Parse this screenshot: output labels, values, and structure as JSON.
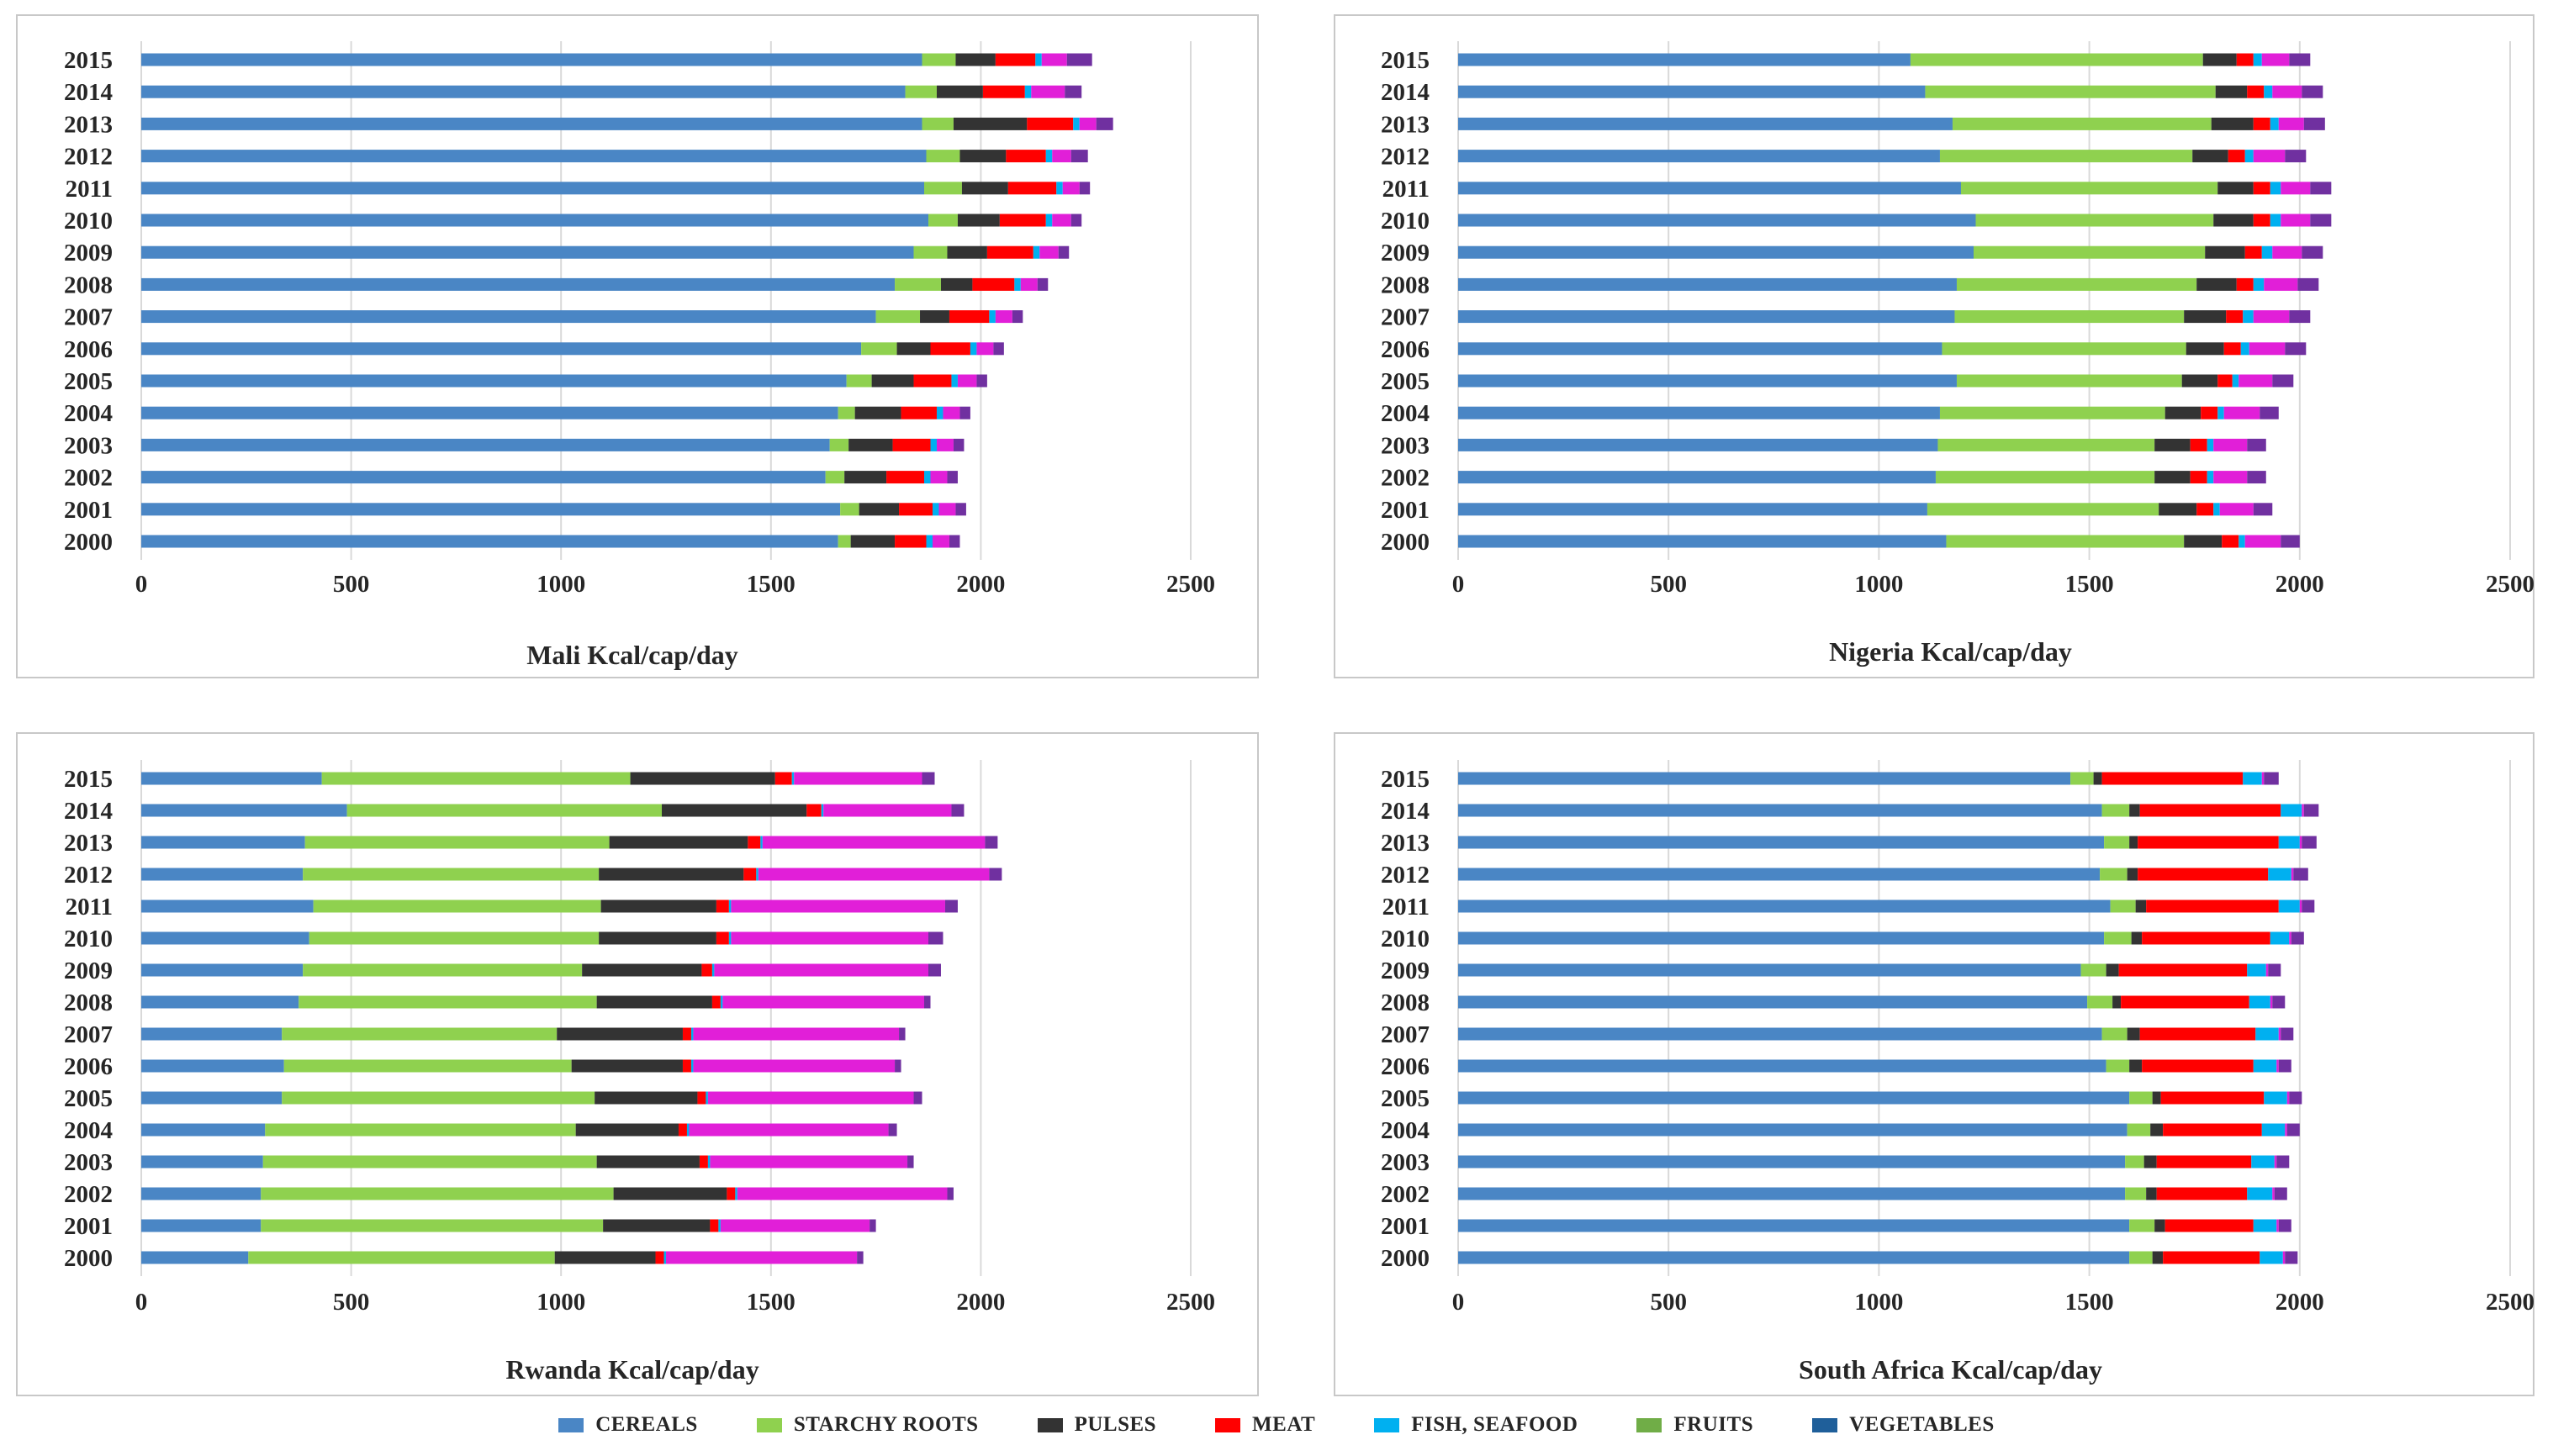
{
  "chart_data": [
    {
      "type": "bar",
      "orientation": "horizontal",
      "stacked": true,
      "title": "Mali    Kcal/cap/day",
      "categories": [
        "2000",
        "2001",
        "2002",
        "2003",
        "2004",
        "2005",
        "2006",
        "2007",
        "2008",
        "2009",
        "2010",
        "2011",
        "2012",
        "2013",
        "2014",
        "2015"
      ],
      "xlim": [
        0,
        2500
      ],
      "xticks": [
        "0",
        "500",
        "1000",
        "1500",
        "2000",
        "2500"
      ],
      "series": [
        {
          "name": "CEREALS",
          "values": [
            1660,
            1665,
            1630,
            1640,
            1660,
            1680,
            1715,
            1750,
            1795,
            1840,
            1875,
            1865,
            1870,
            1860,
            1820,
            1860
          ]
        },
        {
          "name": "STARCHY ROOTS",
          "values": [
            30,
            45,
            45,
            45,
            40,
            60,
            85,
            105,
            110,
            80,
            70,
            90,
            80,
            75,
            75,
            80
          ]
        },
        {
          "name": "PULSES",
          "values": [
            105,
            95,
            100,
            105,
            110,
            100,
            80,
            70,
            75,
            95,
            100,
            110,
            110,
            175,
            110,
            95
          ]
        },
        {
          "name": "MEAT",
          "values": [
            75,
            80,
            90,
            90,
            85,
            90,
            95,
            95,
            100,
            110,
            110,
            115,
            95,
            110,
            100,
            95
          ]
        },
        {
          "name": "FISH, SEAFOOD",
          "values": [
            15,
            15,
            15,
            15,
            15,
            15,
            15,
            15,
            15,
            15,
            15,
            15,
            15,
            15,
            15,
            15
          ]
        },
        {
          "name": "FRUITS",
          "values": [
            40,
            40,
            40,
            40,
            40,
            45,
            40,
            40,
            40,
            45,
            45,
            40,
            45,
            40,
            80,
            60
          ]
        },
        {
          "name": "VEGETABLES",
          "values": [
            25,
            25,
            25,
            25,
            25,
            25,
            25,
            25,
            25,
            25,
            25,
            25,
            40,
            40,
            40,
            60
          ]
        }
      ]
    },
    {
      "type": "bar",
      "orientation": "horizontal",
      "stacked": true,
      "title": "Nigeria    Kcal/cap/day",
      "categories": [
        "2000",
        "2001",
        "2002",
        "2003",
        "2004",
        "2005",
        "2006",
        "2007",
        "2008",
        "2009",
        "2010",
        "2011",
        "2012",
        "2013",
        "2014",
        "2015"
      ],
      "xlim": [
        0,
        2500
      ],
      "xticks": [
        "0",
        "500",
        "1000",
        "1500",
        "2000",
        "2500"
      ],
      "series": [
        {
          "name": "CEREALS",
          "values": [
            1160,
            1115,
            1135,
            1140,
            1145,
            1185,
            1150,
            1180,
            1185,
            1225,
            1230,
            1195,
            1145,
            1175,
            1110,
            1075
          ]
        },
        {
          "name": "STARCHY ROOTS",
          "values": [
            565,
            550,
            520,
            515,
            535,
            535,
            580,
            545,
            570,
            550,
            565,
            610,
            600,
            615,
            690,
            695
          ]
        },
        {
          "name": "PULSES",
          "values": [
            90,
            90,
            85,
            85,
            85,
            85,
            90,
            100,
            95,
            95,
            95,
            85,
            85,
            100,
            75,
            80
          ]
        },
        {
          "name": "MEAT",
          "values": [
            40,
            40,
            40,
            40,
            40,
            35,
            40,
            40,
            40,
            40,
            40,
            40,
            40,
            40,
            40,
            40
          ]
        },
        {
          "name": "FISH, SEAFOOD",
          "values": [
            15,
            15,
            15,
            15,
            15,
            15,
            20,
            25,
            25,
            25,
            25,
            25,
            20,
            20,
            20,
            20
          ]
        },
        {
          "name": "FRUITS",
          "values": [
            85,
            80,
            80,
            80,
            85,
            80,
            85,
            85,
            80,
            70,
            70,
            70,
            75,
            60,
            70,
            65
          ]
        },
        {
          "name": "VEGETABLES",
          "values": [
            45,
            45,
            45,
            45,
            45,
            50,
            50,
            50,
            50,
            50,
            50,
            50,
            50,
            50,
            50,
            50
          ]
        }
      ]
    },
    {
      "type": "bar",
      "orientation": "horizontal",
      "stacked": true,
      "title": "Rwanda    Kcal/cap/day",
      "categories": [
        "2000",
        "2001",
        "2002",
        "2003",
        "2004",
        "2005",
        "2006",
        "2007",
        "2008",
        "2009",
        "2010",
        "2011",
        "2012",
        "2013",
        "2014",
        "2015"
      ],
      "xlim": [
        0,
        2500
      ],
      "xticks": [
        "0",
        "500",
        "1000",
        "1500",
        "2000",
        "2500"
      ],
      "series": [
        {
          "name": "CEREALS",
          "values": [
            255,
            285,
            285,
            290,
            295,
            335,
            340,
            335,
            375,
            385,
            400,
            410,
            385,
            390,
            490,
            430
          ]
        },
        {
          "name": "STARCHY ROOTS",
          "values": [
            730,
            815,
            840,
            795,
            740,
            745,
            685,
            655,
            710,
            665,
            690,
            685,
            705,
            725,
            750,
            735
          ]
        },
        {
          "name": "PULSES",
          "values": [
            240,
            255,
            270,
            245,
            245,
            245,
            265,
            300,
            275,
            285,
            280,
            275,
            345,
            330,
            345,
            345
          ]
        },
        {
          "name": "MEAT",
          "values": [
            20,
            20,
            20,
            20,
            20,
            20,
            20,
            20,
            20,
            25,
            30,
            30,
            30,
            30,
            35,
            40
          ]
        },
        {
          "name": "FISH, SEAFOOD",
          "values": [
            5,
            5,
            5,
            5,
            5,
            5,
            5,
            5,
            5,
            5,
            5,
            5,
            5,
            5,
            5,
            5
          ]
        },
        {
          "name": "FRUITS",
          "values": [
            455,
            355,
            500,
            470,
            475,
            490,
            480,
            490,
            480,
            510,
            470,
            510,
            550,
            530,
            305,
            305
          ]
        },
        {
          "name": "VEGETABLES",
          "values": [
            15,
            15,
            15,
            15,
            20,
            20,
            15,
            15,
            15,
            30,
            35,
            30,
            30,
            30,
            30,
            30
          ]
        }
      ]
    },
    {
      "type": "bar",
      "orientation": "horizontal",
      "stacked": true,
      "title": "South Africa    Kcal/cap/day",
      "categories": [
        "2000",
        "2001",
        "2002",
        "2003",
        "2004",
        "2005",
        "2006",
        "2007",
        "2008",
        "2009",
        "2010",
        "2011",
        "2012",
        "2013",
        "2014",
        "2015"
      ],
      "xlim": [
        0,
        2500
      ],
      "xticks": [
        "0",
        "500",
        "1000",
        "1500",
        "2000",
        "2500"
      ],
      "series": [
        {
          "name": "CEREALS",
          "values": [
            1595,
            1595,
            1585,
            1585,
            1590,
            1595,
            1540,
            1530,
            1495,
            1480,
            1535,
            1550,
            1525,
            1535,
            1530,
            1455
          ]
        },
        {
          "name": "STARCHY ROOTS",
          "values": [
            55,
            60,
            50,
            45,
            55,
            55,
            55,
            60,
            60,
            60,
            65,
            60,
            65,
            60,
            65,
            55
          ]
        },
        {
          "name": "PULSES",
          "values": [
            25,
            25,
            25,
            30,
            30,
            20,
            30,
            30,
            20,
            30,
            25,
            25,
            25,
            20,
            25,
            20
          ]
        },
        {
          "name": "MEAT",
          "values": [
            230,
            210,
            215,
            225,
            235,
            245,
            265,
            275,
            305,
            305,
            305,
            315,
            310,
            335,
            335,
            335
          ]
        },
        {
          "name": "FISH, SEAFOOD",
          "values": [
            55,
            55,
            60,
            55,
            55,
            55,
            55,
            55,
            50,
            45,
            45,
            50,
            55,
            50,
            50,
            45
          ]
        },
        {
          "name": "FRUITS",
          "values": [
            5,
            5,
            5,
            5,
            5,
            5,
            5,
            5,
            5,
            5,
            5,
            5,
            5,
            5,
            5,
            5
          ]
        },
        {
          "name": "VEGETABLES",
          "values": [
            30,
            30,
            30,
            30,
            30,
            30,
            30,
            30,
            30,
            30,
            30,
            30,
            35,
            35,
            35,
            35
          ]
        }
      ]
    }
  ],
  "legend": [
    {
      "name": "CEREALS",
      "color": "#4A86C5"
    },
    {
      "name": "STARCHY ROOTS",
      "color": "#8FD14F"
    },
    {
      "name": "PULSES",
      "color": "#333333"
    },
    {
      "name": "MEAT",
      "color": "#FF0000"
    },
    {
      "name": "FISH, SEAFOOD",
      "color": "#00B0F0"
    },
    {
      "name": "FRUITS",
      "color": "#70AD47"
    },
    {
      "name": "VEGETABLES",
      "color": "#1F5F9A"
    }
  ],
  "bar_colors": [
    "#4A86C5",
    "#8FD14F",
    "#333333",
    "#FF0000",
    "#00B0F0",
    "#E11FD8",
    "#7030A0"
  ],
  "colors": {
    "gridline": "#D9D9D9",
    "panel_border": "#C8C8C8",
    "text": "#262626"
  }
}
